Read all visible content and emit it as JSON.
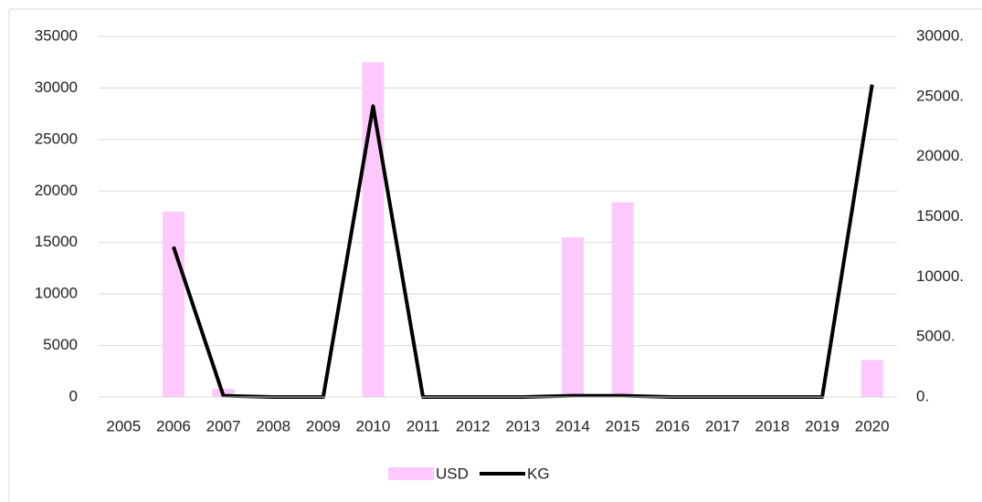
{
  "chart_data": {
    "type": "bar",
    "categories": [
      "2005",
      "2006",
      "2007",
      "2008",
      "2009",
      "2010",
      "2011",
      "2012",
      "2013",
      "2014",
      "2015",
      "2016",
      "2017",
      "2018",
      "2019",
      "2020"
    ],
    "series": [
      {
        "name": "USD",
        "type": "bar",
        "color": "#fdc9fd",
        "axis": "y",
        "values": [
          0,
          18000,
          800,
          0,
          0,
          32500,
          0,
          0,
          0,
          15500,
          18900,
          0,
          0,
          0,
          0,
          3600
        ]
      },
      {
        "name": "KG",
        "type": "line",
        "color": "#000000",
        "axis": "y2",
        "values": [
          null,
          12500,
          100,
          0,
          0,
          24200,
          0,
          0,
          0,
          100,
          100,
          0,
          0,
          0,
          0,
          26000
        ]
      }
    ],
    "ylim": [
      0,
      35000
    ],
    "yticks": [
      0,
      5000,
      10000,
      15000,
      20000,
      25000,
      30000,
      35000
    ],
    "y2lim": [
      0,
      30000
    ],
    "y2ticks": [
      {
        "value": 0,
        "label": "0."
      },
      {
        "value": 5000,
        "label": "5000."
      },
      {
        "value": 10000,
        "label": "10000."
      },
      {
        "value": 15000,
        "label": "15000."
      },
      {
        "value": 20000,
        "label": "20000."
      },
      {
        "value": 25000,
        "label": "25000."
      },
      {
        "value": 30000,
        "label": "30000."
      }
    ],
    "grid": true,
    "legend": "bottom"
  }
}
